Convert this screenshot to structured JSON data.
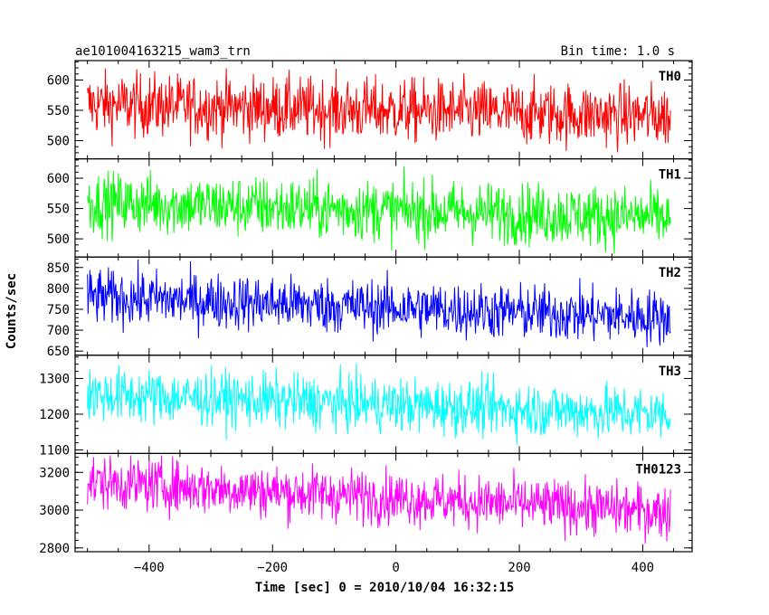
{
  "chart_data": {
    "type": "line",
    "header_left": "ae101004163215_wam3_trn",
    "header_right": "Bin time: 1.0 s",
    "xlabel": "Time [sec] 0 = 2010/10/04 16:32:15",
    "ylabel": "Counts/sec",
    "xlim": [
      -520,
      480
    ],
    "x_start": -500,
    "x_end": 445,
    "bin": 1.0,
    "xticks": [
      -400,
      -200,
      0,
      200,
      400
    ],
    "xtick_labels": [
      "−400",
      "−200",
      "0",
      "200",
      "400"
    ],
    "series": [
      {
        "name": "TH0",
        "color": "#ff0000",
        "ylim": [
          470,
          632
        ],
        "yticks": [
          500,
          550,
          600
        ],
        "yticklabels": [
          "500",
          "550",
          "600"
        ],
        "trend": [
          560,
          540
        ],
        "noise": 26,
        "max": 632
      },
      {
        "name": "TH1",
        "color": "#00ff00",
        "ylim": [
          470,
          632
        ],
        "yticks": [
          500,
          550,
          600
        ],
        "yticklabels": [
          "500",
          "550",
          "600"
        ],
        "trend": [
          560,
          535
        ],
        "noise": 25,
        "max": 630
      },
      {
        "name": "TH2",
        "color": "#0000ff",
        "ylim": [
          640,
          875
        ],
        "yticks": [
          650,
          700,
          750,
          800,
          850
        ],
        "yticklabels": [
          "650",
          "700",
          "750",
          "800",
          "850"
        ],
        "trend": [
          780,
          730
        ],
        "noise": 33,
        "max": 875
      },
      {
        "name": "TH3",
        "color": "#00ffff",
        "ylim": [
          1090,
          1365
        ],
        "yticks": [
          1100,
          1200,
          1300
        ],
        "yticklabels": [
          "1100",
          "1200",
          "1300"
        ],
        "trend": [
          1255,
          1200
        ],
        "noise": 38,
        "max": 1365
      },
      {
        "name": "TH0123",
        "color": "#ff00ff",
        "ylim": [
          2780,
          3300
        ],
        "yticks": [
          2800,
          3000,
          3200
        ],
        "yticklabels": [
          "2800",
          "3000",
          "3200"
        ],
        "trend": [
          3150,
          2990
        ],
        "noise": 70,
        "max": 3290
      }
    ]
  }
}
